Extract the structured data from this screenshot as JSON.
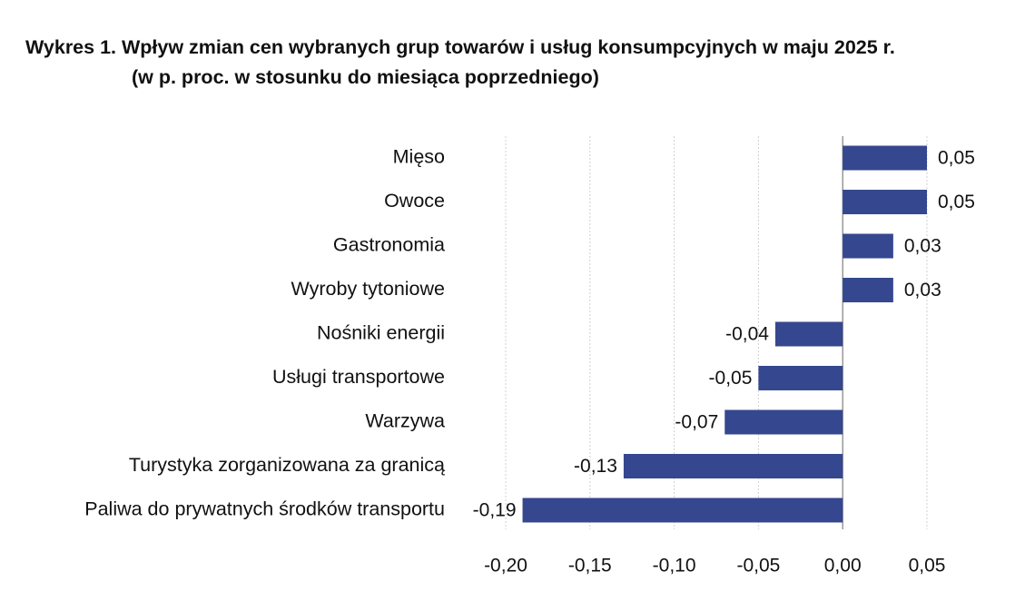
{
  "title_line1": "Wykres 1. Wpływ zmian cen wybranych grup towarów i usług konsumpcyjnych w maju 2025 r.",
  "title_line2": "(w p. proc. w stosunku do miesiąca poprzedniego)",
  "colors": {
    "bar": "#35478f",
    "grid": "#d0d0d0",
    "axis": "#7f7f7f"
  },
  "chart_data": {
    "type": "bar",
    "orientation": "horizontal",
    "title": "Wykres 1. Wpływ zmian cen wybranych grup towarów i usług konsumpcyjnych w maju 2025 r. (w p. proc. w stosunku do miesiąca poprzedniego)",
    "categories": [
      "Mięso",
      "Owoce",
      "Gastronomia",
      "Wyroby tytoniowe",
      "Nośniki energii",
      "Usługi transportowe",
      "Warzywa",
      "Turystyka zorganizowana za granicą",
      "Paliwa do prywatnych środków transportu"
    ],
    "values": [
      0.05,
      0.05,
      0.03,
      0.03,
      -0.04,
      -0.05,
      -0.07,
      -0.13,
      -0.19
    ],
    "value_labels": [
      "0,05",
      "0,05",
      "0,03",
      "0,03",
      "-0,04",
      "-0,05",
      "-0,07",
      "-0,13",
      "-0,19"
    ],
    "xlim": [
      -0.2,
      0.05
    ],
    "xticks": [
      -0.2,
      -0.15,
      -0.1,
      -0.05,
      0.0,
      0.05
    ],
    "xtick_labels": [
      "-0,20",
      "-0,15",
      "-0,10",
      "-0,05",
      "0,00",
      "0,05"
    ],
    "grid": "vertical dashed",
    "legend": "none"
  }
}
